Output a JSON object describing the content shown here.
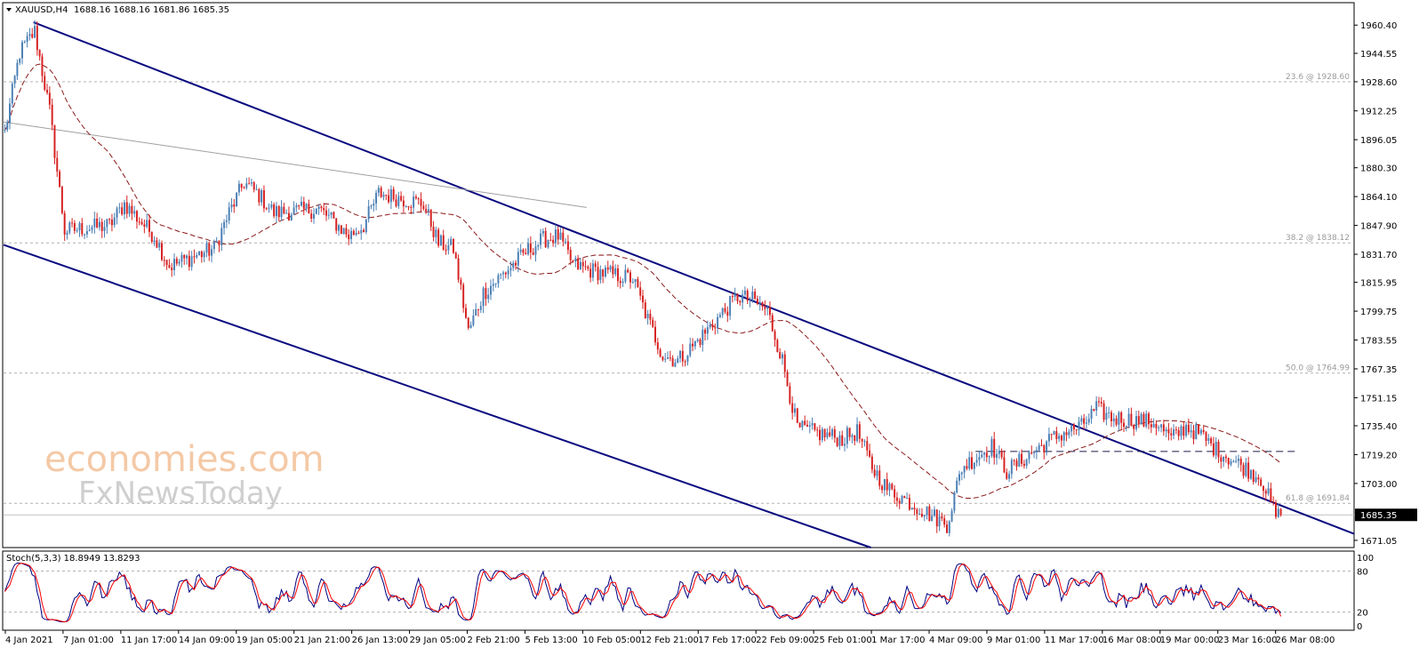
{
  "header": {
    "symbol_timeframe": "XAUUSD,H4",
    "ohlc": "1688.16 1688.16 1681.86 1685.35",
    "menu_arrow": "triangle-down-icon"
  },
  "watermark": {
    "brand_line1": "economies.com",
    "brand_line2": "FxNewsToday"
  },
  "price_axis": {
    "ticks": [
      "1960.40",
      "1944.55",
      "1928.60",
      "1912.25",
      "1896.05",
      "1880.30",
      "1864.10",
      "1847.90",
      "1831.70",
      "1815.95",
      "1799.75",
      "1783.55",
      "1767.35",
      "1751.15",
      "1735.40",
      "1719.20",
      "1703.00",
      "1671.05"
    ],
    "tick_values": [
      1960.4,
      1944.55,
      1928.6,
      1912.25,
      1896.05,
      1880.3,
      1864.1,
      1847.9,
      1831.7,
      1815.95,
      1799.75,
      1783.55,
      1767.35,
      1751.15,
      1735.4,
      1719.2,
      1703.0,
      1671.05
    ],
    "current_price": "1685.35",
    "current_price_value": 1685.35,
    "range": [
      1667.0,
      1973.0
    ]
  },
  "fib_levels": [
    {
      "label": "23.6 @ 1928.60",
      "value": 1928.6
    },
    {
      "label": "38.2 @ 1838.12",
      "value": 1838.12
    },
    {
      "label": "50.0 @ 1764.99",
      "value": 1764.99
    },
    {
      "label": "61.8 @ 1691.84",
      "value": 1691.84
    }
  ],
  "support_level": 1721.0,
  "stoch_panel": {
    "title": "Stoch(5,3,3) 18.8949 13.8293",
    "ticks": [
      "100",
      "80",
      "20",
      "0"
    ],
    "tick_values": [
      100,
      80,
      20,
      0
    ],
    "main_color": "#000080",
    "signal_color": "#ff0000"
  },
  "time_axis": {
    "labels": [
      "4 Jan 2021",
      "7 Jan 01:00",
      "11 Jan 17:00",
      "14 Jan 09:00",
      "19 Jan 05:00",
      "21 Jan 21:00",
      "26 Jan 13:00",
      "29 Jan 05:00",
      "2 Feb 21:00",
      "5 Feb 13:00",
      "10 Feb 05:00",
      "12 Feb 21:00",
      "17 Feb 17:00",
      "22 Feb 09:00",
      "25 Feb 01:00",
      "1 Mar 17:00",
      "4 Mar 09:00",
      "9 Mar 01:00",
      "11 Mar 17:00",
      "16 Mar 08:00",
      "19 Mar 00:00",
      "23 Mar 16:00",
      "26 Mar 08:00"
    ]
  },
  "colors": {
    "bull": "#4a7fb5",
    "bear": "#d62020",
    "channel": "#0a0a80",
    "ma": "#8b1a1a",
    "grid": "#b0b0b0",
    "trendline": "#a0a0a0"
  },
  "chart_data": {
    "type": "candlestick",
    "title": "XAUUSD,H4",
    "x_start": "4 Jan 2021",
    "x_end": "26 Mar 2021",
    "ylim": [
      1667.0,
      1973.0
    ],
    "anchors": [
      {
        "date": "4 Jan 2021",
        "price": 1900
      },
      {
        "date": "5 Jan 2021",
        "price": 1945
      },
      {
        "date": "6 Jan 2021",
        "price": 1957
      },
      {
        "date": "7 Jan 2021",
        "price": 1912
      },
      {
        "date": "8 Jan 2021",
        "price": 1845
      },
      {
        "date": "11 Jan 2021",
        "price": 1848
      },
      {
        "date": "12 Jan 2021",
        "price": 1860
      },
      {
        "date": "14 Jan 2021",
        "price": 1842
      },
      {
        "date": "15 Jan 2021",
        "price": 1825
      },
      {
        "date": "18 Jan 2021",
        "price": 1835
      },
      {
        "date": "19 Jan 2021",
        "price": 1855
      },
      {
        "date": "20 Jan 2021",
        "price": 1872
      },
      {
        "date": "21 Jan 2021",
        "price": 1865
      },
      {
        "date": "22 Jan 2021",
        "price": 1855
      },
      {
        "date": "25 Jan 2021",
        "price": 1857
      },
      {
        "date": "26 Jan 2021",
        "price": 1850
      },
      {
        "date": "27 Jan 2021",
        "price": 1842
      },
      {
        "date": "28 Jan 2021",
        "price": 1848
      },
      {
        "date": "29 Jan 2021",
        "price": 1866
      },
      {
        "date": "1 Feb 2021",
        "price": 1860
      },
      {
        "date": "2 Feb 2021",
        "price": 1838
      },
      {
        "date": "3 Feb 2021",
        "price": 1835
      },
      {
        "date": "4 Feb 2021",
        "price": 1788
      },
      {
        "date": "5 Feb 2021",
        "price": 1810
      },
      {
        "date": "8 Feb 2021",
        "price": 1834
      },
      {
        "date": "9 Feb 2021",
        "price": 1840
      },
      {
        "date": "10 Feb 2021",
        "price": 1842
      },
      {
        "date": "11 Feb 2021",
        "price": 1826
      },
      {
        "date": "12 Feb 2021",
        "price": 1823
      },
      {
        "date": "15 Feb 2021",
        "price": 1818
      },
      {
        "date": "16 Feb 2021",
        "price": 1795
      },
      {
        "date": "17 Feb 2021",
        "price": 1775
      },
      {
        "date": "18 Feb 2021",
        "price": 1772
      },
      {
        "date": "19 Feb 2021",
        "price": 1780
      },
      {
        "date": "22 Feb 2021",
        "price": 1808
      },
      {
        "date": "23 Feb 2021",
        "price": 1806
      },
      {
        "date": "24 Feb 2021",
        "price": 1800
      },
      {
        "date": "25 Feb 2021",
        "price": 1772
      },
      {
        "date": "26 Feb 2021",
        "price": 1734
      },
      {
        "date": "1 Mar 2021",
        "price": 1728
      },
      {
        "date": "2 Mar 2021",
        "price": 1732
      },
      {
        "date": "3 Mar 2021",
        "price": 1712
      },
      {
        "date": "4 Mar 2021",
        "price": 1700
      },
      {
        "date": "5 Mar 2021",
        "price": 1695
      },
      {
        "date": "8 Mar 2021",
        "price": 1680
      },
      {
        "date": "9 Mar 2021",
        "price": 1712
      },
      {
        "date": "10 Mar 2021",
        "price": 1718
      },
      {
        "date": "11 Mar 2021",
        "price": 1724
      },
      {
        "date": "12 Mar 2021",
        "price": 1710
      },
      {
        "date": "15 Mar 2021",
        "price": 1728
      },
      {
        "date": "16 Mar 2021",
        "price": 1732
      },
      {
        "date": "17 Mar 2021",
        "price": 1735
      },
      {
        "date": "18 Mar 2021",
        "price": 1745
      },
      {
        "date": "19 Mar 2021",
        "price": 1740
      },
      {
        "date": "22 Mar 2021",
        "price": 1737
      },
      {
        "date": "23 Mar 2021",
        "price": 1728
      },
      {
        "date": "24 Mar 2021",
        "price": 1735
      },
      {
        "date": "25 Mar 2021",
        "price": 1730
      },
      {
        "date": "26 Mar 2021",
        "price": 1722
      },
      {
        "date": "29 Mar 2021",
        "price": 1706
      },
      {
        "date": "30 Mar 2021",
        "price": 1685
      }
    ],
    "channel_upper": [
      {
        "date": "6 Jan 2021",
        "price": 1962
      },
      {
        "date": "30 Mar 2021",
        "price": 1692
      }
    ],
    "channel_lower": [
      {
        "date": "4 Jan 2021",
        "price": 1837
      },
      {
        "date": "3 Mar 2021",
        "price": 1667
      }
    ],
    "support_line_price": 1721.0,
    "stochastic": {
      "k": 18.8949,
      "d": 13.8293,
      "overbought": 80,
      "oversold": 20
    }
  }
}
